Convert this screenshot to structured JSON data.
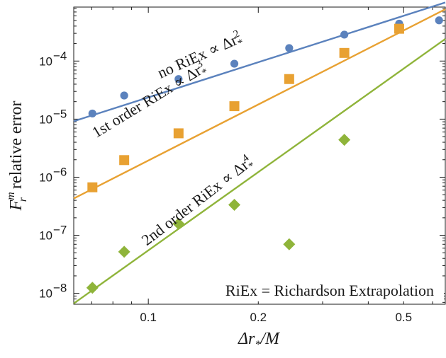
{
  "chart_data": {
    "type": "scatter",
    "x_scale": "log",
    "y_scale": "log",
    "xlim": [
      0.0625,
      0.65
    ],
    "ylim": [
      6.5e-09,
      0.00085
    ],
    "xlabel": {
      "main": "Δr",
      "sub": "*",
      "tail": "/M"
    },
    "ylabel": {
      "main": "F",
      "sub": "r",
      "sup": "m",
      "tail": "relative error"
    },
    "x_ticks": [
      {
        "value": 0.1,
        "label": "0.1"
      },
      {
        "value": 0.2,
        "label": "0.2"
      },
      {
        "value": 0.5,
        "label": "0.5"
      }
    ],
    "y_ticks": [
      {
        "value": 1e-08,
        "base": "10",
        "exp": "−8"
      },
      {
        "value": 1e-07,
        "base": "10",
        "exp": "−7"
      },
      {
        "value": 1e-06,
        "base": "10",
        "exp": "−6"
      },
      {
        "value": 1e-05,
        "base": "10",
        "exp": "−5"
      },
      {
        "value": 0.0001,
        "base": "10",
        "exp": "−4"
      }
    ],
    "grid": false,
    "legend": "none",
    "series": [
      {
        "key": "no-riex",
        "marker": "circle",
        "color": "#5b82bd",
        "x": [
          0.0703,
          0.0859,
          0.121,
          0.172,
          0.243,
          0.344,
          0.486,
          0.625
        ],
        "y": [
          1.25e-05,
          2.55e-05,
          4.9e-05,
          9e-05,
          0.000167,
          0.000285,
          0.00044,
          0.000502
        ],
        "fit": {
          "slope": 2,
          "x": [
            0.0625,
            0.65
          ],
          "y": [
            9.2e-06,
            0.00102
          ]
        },
        "label": {
          "pre": "no RiEx ∝ Δr",
          "sub": "*",
          "sup": "2",
          "at_x": 0.108,
          "at_y": 5e-05,
          "angle": 24.2
        }
      },
      {
        "key": "first-order",
        "marker": "square",
        "color": "#e8a132",
        "x": [
          0.0703,
          0.0859,
          0.121,
          0.172,
          0.243,
          0.344,
          0.486
        ],
        "y": [
          6.7e-07,
          1.97e-06,
          5.7e-06,
          1.67e-05,
          4.9e-05,
          0.000138,
          0.00036
        ],
        "fit": {
          "slope": 3,
          "x": [
            0.0625,
            0.65
          ],
          "y": [
            4.3e-07,
            0.00078
          ]
        },
        "label": {
          "pre": "1st order RiEx ∝ Δr",
          "sub": "*",
          "sup": "3",
          "at_x": 0.072,
          "at_y": 4.7e-06,
          "angle": 31.4
        }
      },
      {
        "key": "second-order",
        "marker": "diamond",
        "color": "#8fb43a",
        "x": [
          0.0703,
          0.0859,
          0.121,
          0.172,
          0.243,
          0.344
        ],
        "y": [
          1.25e-08,
          5.2e-08,
          1.58e-07,
          3.35e-07,
          7e-08,
          4.4e-06
        ],
        "fit": {
          "slope": 4,
          "x": [
            0.0625,
            0.65
          ],
          "y": [
            6.7e-09,
            0.00024
          ]
        },
        "label": {
          "pre": "2nd order RiEx ∝ Δr",
          "sub": "*",
          "sup": "4",
          "at_x": 0.099,
          "at_y": 6.5e-08,
          "angle": 37.6
        }
      }
    ],
    "annotation": "RiEx = Richardson Extrapolation"
  }
}
